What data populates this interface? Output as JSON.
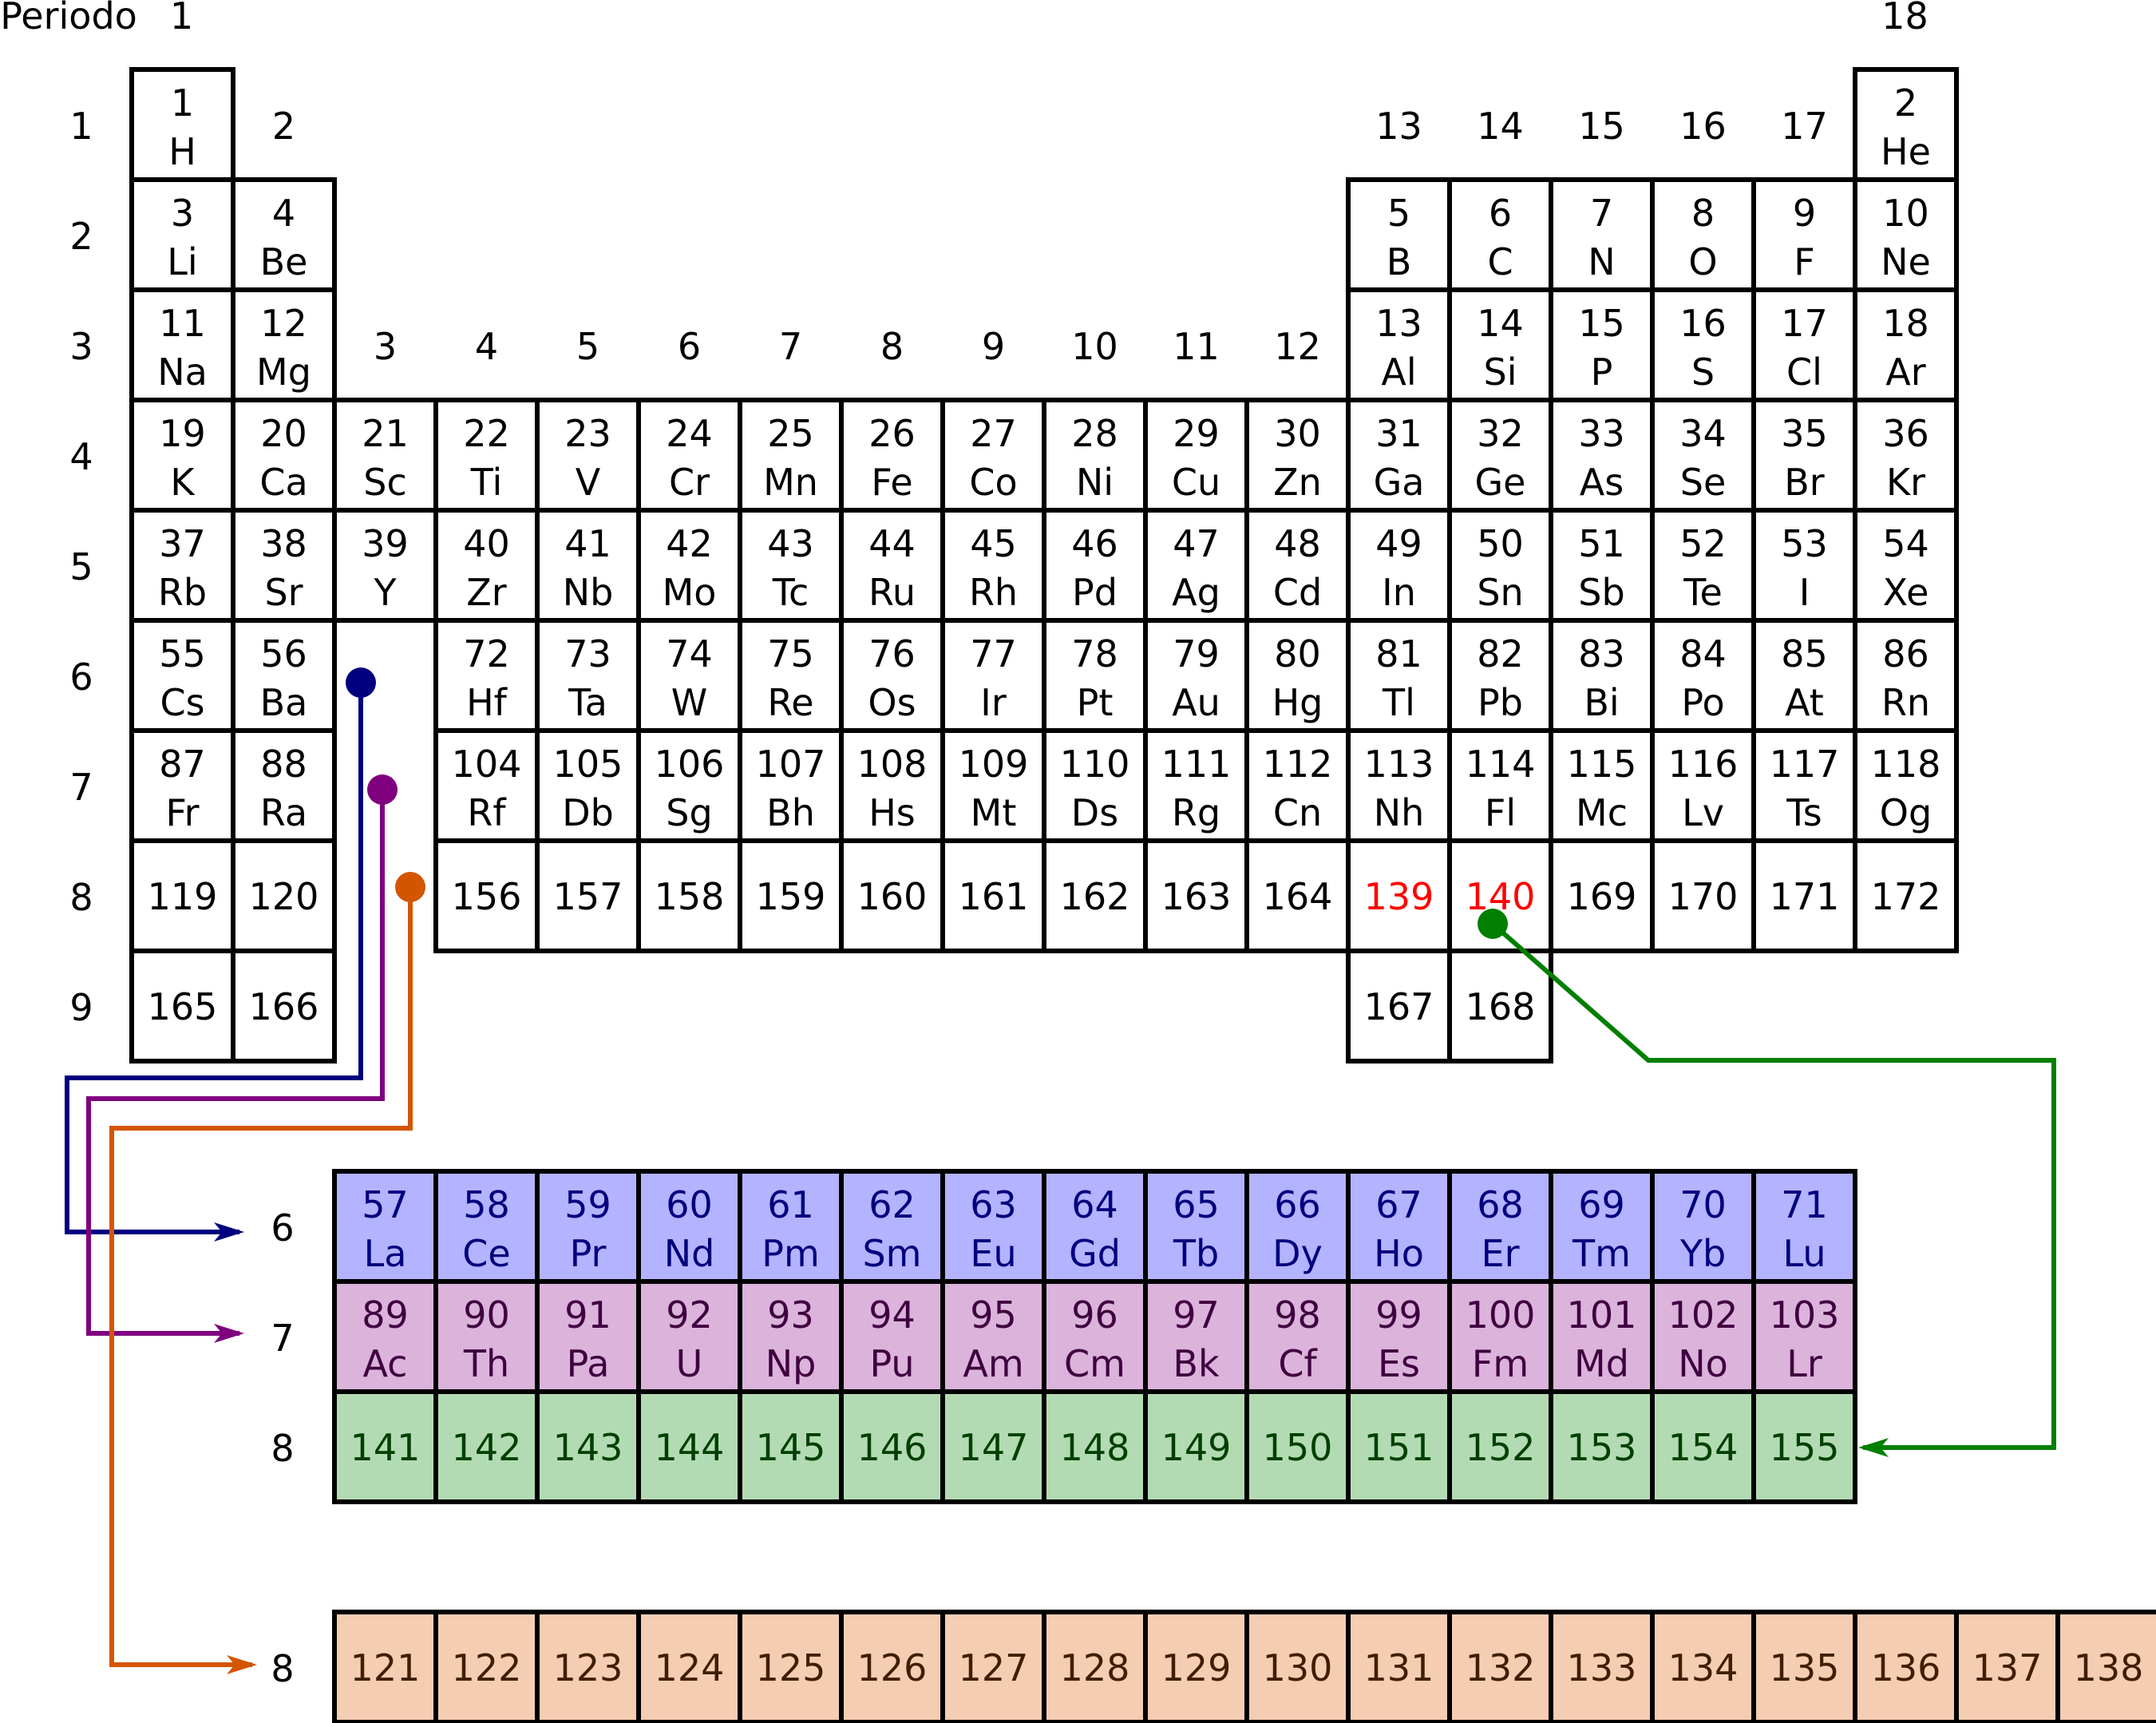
{
  "period_header": "Periodo",
  "group_top_labels": [
    {
      "col": 1,
      "text": "1"
    },
    {
      "col": 18,
      "text": "18"
    }
  ],
  "group_side_labels": [
    {
      "col": 2,
      "row": 1,
      "text": "2"
    },
    {
      "col": 13,
      "row": 1,
      "text": "13"
    },
    {
      "col": 14,
      "row": 1,
      "text": "14"
    },
    {
      "col": 15,
      "row": 1,
      "text": "15"
    },
    {
      "col": 16,
      "row": 1,
      "text": "16"
    },
    {
      "col": 17,
      "row": 1,
      "text": "17"
    },
    {
      "col": 3,
      "row": 3,
      "text": "3"
    },
    {
      "col": 4,
      "row": 3,
      "text": "4"
    },
    {
      "col": 5,
      "row": 3,
      "text": "5"
    },
    {
      "col": 6,
      "row": 3,
      "text": "6"
    },
    {
      "col": 7,
      "row": 3,
      "text": "7"
    },
    {
      "col": 8,
      "row": 3,
      "text": "8"
    },
    {
      "col": 9,
      "row": 3,
      "text": "9"
    },
    {
      "col": 10,
      "row": 3,
      "text": "10"
    },
    {
      "col": 11,
      "row": 3,
      "text": "11"
    },
    {
      "col": 12,
      "row": 3,
      "text": "12"
    }
  ],
  "period_labels": [
    "1",
    "2",
    "3",
    "4",
    "5",
    "6",
    "7",
    "8",
    "9"
  ],
  "main_cells": [
    {
      "row": 1,
      "col": 1,
      "num": "1",
      "sym": "H"
    },
    {
      "row": 1,
      "col": 18,
      "num": "2",
      "sym": "He"
    },
    {
      "row": 2,
      "col": 1,
      "num": "3",
      "sym": "Li"
    },
    {
      "row": 2,
      "col": 2,
      "num": "4",
      "sym": "Be"
    },
    {
      "row": 2,
      "col": 13,
      "num": "5",
      "sym": "B"
    },
    {
      "row": 2,
      "col": 14,
      "num": "6",
      "sym": "C"
    },
    {
      "row": 2,
      "col": 15,
      "num": "7",
      "sym": "N"
    },
    {
      "row": 2,
      "col": 16,
      "num": "8",
      "sym": "O"
    },
    {
      "row": 2,
      "col": 17,
      "num": "9",
      "sym": "F"
    },
    {
      "row": 2,
      "col": 18,
      "num": "10",
      "sym": "Ne"
    },
    {
      "row": 3,
      "col": 1,
      "num": "11",
      "sym": "Na"
    },
    {
      "row": 3,
      "col": 2,
      "num": "12",
      "sym": "Mg"
    },
    {
      "row": 3,
      "col": 13,
      "num": "13",
      "sym": "Al"
    },
    {
      "row": 3,
      "col": 14,
      "num": "14",
      "sym": "Si"
    },
    {
      "row": 3,
      "col": 15,
      "num": "15",
      "sym": "P"
    },
    {
      "row": 3,
      "col": 16,
      "num": "16",
      "sym": "S"
    },
    {
      "row": 3,
      "col": 17,
      "num": "17",
      "sym": "Cl"
    },
    {
      "row": 3,
      "col": 18,
      "num": "18",
      "sym": "Ar"
    },
    {
      "row": 4,
      "col": 1,
      "num": "19",
      "sym": "K"
    },
    {
      "row": 4,
      "col": 2,
      "num": "20",
      "sym": "Ca"
    },
    {
      "row": 4,
      "col": 3,
      "num": "21",
      "sym": "Sc"
    },
    {
      "row": 4,
      "col": 4,
      "num": "22",
      "sym": "Ti"
    },
    {
      "row": 4,
      "col": 5,
      "num": "23",
      "sym": "V"
    },
    {
      "row": 4,
      "col": 6,
      "num": "24",
      "sym": "Cr"
    },
    {
      "row": 4,
      "col": 7,
      "num": "25",
      "sym": "Mn"
    },
    {
      "row": 4,
      "col": 8,
      "num": "26",
      "sym": "Fe"
    },
    {
      "row": 4,
      "col": 9,
      "num": "27",
      "sym": "Co"
    },
    {
      "row": 4,
      "col": 10,
      "num": "28",
      "sym": "Ni"
    },
    {
      "row": 4,
      "col": 11,
      "num": "29",
      "sym": "Cu"
    },
    {
      "row": 4,
      "col": 12,
      "num": "30",
      "sym": "Zn"
    },
    {
      "row": 4,
      "col": 13,
      "num": "31",
      "sym": "Ga"
    },
    {
      "row": 4,
      "col": 14,
      "num": "32",
      "sym": "Ge"
    },
    {
      "row": 4,
      "col": 15,
      "num": "33",
      "sym": "As"
    },
    {
      "row": 4,
      "col": 16,
      "num": "34",
      "sym": "Se"
    },
    {
      "row": 4,
      "col": 17,
      "num": "35",
      "sym": "Br"
    },
    {
      "row": 4,
      "col": 18,
      "num": "36",
      "sym": "Kr"
    },
    {
      "row": 5,
      "col": 1,
      "num": "37",
      "sym": "Rb"
    },
    {
      "row": 5,
      "col": 2,
      "num": "38",
      "sym": "Sr"
    },
    {
      "row": 5,
      "col": 3,
      "num": "39",
      "sym": "Y"
    },
    {
      "row": 5,
      "col": 4,
      "num": "40",
      "sym": "Zr"
    },
    {
      "row": 5,
      "col": 5,
      "num": "41",
      "sym": "Nb"
    },
    {
      "row": 5,
      "col": 6,
      "num": "42",
      "sym": "Mo"
    },
    {
      "row": 5,
      "col": 7,
      "num": "43",
      "sym": "Tc"
    },
    {
      "row": 5,
      "col": 8,
      "num": "44",
      "sym": "Ru"
    },
    {
      "row": 5,
      "col": 9,
      "num": "45",
      "sym": "Rh"
    },
    {
      "row": 5,
      "col": 10,
      "num": "46",
      "sym": "Pd"
    },
    {
      "row": 5,
      "col": 11,
      "num": "47",
      "sym": "Ag"
    },
    {
      "row": 5,
      "col": 12,
      "num": "48",
      "sym": "Cd"
    },
    {
      "row": 5,
      "col": 13,
      "num": "49",
      "sym": "In"
    },
    {
      "row": 5,
      "col": 14,
      "num": "50",
      "sym": "Sn"
    },
    {
      "row": 5,
      "col": 15,
      "num": "51",
      "sym": "Sb"
    },
    {
      "row": 5,
      "col": 16,
      "num": "52",
      "sym": "Te"
    },
    {
      "row": 5,
      "col": 17,
      "num": "53",
      "sym": "I"
    },
    {
      "row": 5,
      "col": 18,
      "num": "54",
      "sym": "Xe"
    },
    {
      "row": 6,
      "col": 1,
      "num": "55",
      "sym": "Cs"
    },
    {
      "row": 6,
      "col": 2,
      "num": "56",
      "sym": "Ba"
    },
    {
      "row": 6,
      "col": 4,
      "num": "72",
      "sym": "Hf"
    },
    {
      "row": 6,
      "col": 5,
      "num": "73",
      "sym": "Ta"
    },
    {
      "row": 6,
      "col": 6,
      "num": "74",
      "sym": "W"
    },
    {
      "row": 6,
      "col": 7,
      "num": "75",
      "sym": "Re"
    },
    {
      "row": 6,
      "col": 8,
      "num": "76",
      "sym": "Os"
    },
    {
      "row": 6,
      "col": 9,
      "num": "77",
      "sym": "Ir"
    },
    {
      "row": 6,
      "col": 10,
      "num": "78",
      "sym": "Pt"
    },
    {
      "row": 6,
      "col": 11,
      "num": "79",
      "sym": "Au"
    },
    {
      "row": 6,
      "col": 12,
      "num": "80",
      "sym": "Hg"
    },
    {
      "row": 6,
      "col": 13,
      "num": "81",
      "sym": "Tl"
    },
    {
      "row": 6,
      "col": 14,
      "num": "82",
      "sym": "Pb"
    },
    {
      "row": 6,
      "col": 15,
      "num": "83",
      "sym": "Bi"
    },
    {
      "row": 6,
      "col": 16,
      "num": "84",
      "sym": "Po"
    },
    {
      "row": 6,
      "col": 17,
      "num": "85",
      "sym": "At"
    },
    {
      "row": 6,
      "col": 18,
      "num": "86",
      "sym": "Rn"
    },
    {
      "row": 7,
      "col": 1,
      "num": "87",
      "sym": "Fr"
    },
    {
      "row": 7,
      "col": 2,
      "num": "88",
      "sym": "Ra"
    },
    {
      "row": 7,
      "col": 4,
      "num": "104",
      "sym": "Rf"
    },
    {
      "row": 7,
      "col": 5,
      "num": "105",
      "sym": "Db"
    },
    {
      "row": 7,
      "col": 6,
      "num": "106",
      "sym": "Sg"
    },
    {
      "row": 7,
      "col": 7,
      "num": "107",
      "sym": "Bh"
    },
    {
      "row": 7,
      "col": 8,
      "num": "108",
      "sym": "Hs"
    },
    {
      "row": 7,
      "col": 9,
      "num": "109",
      "sym": "Mt"
    },
    {
      "row": 7,
      "col": 10,
      "num": "110",
      "sym": "Ds"
    },
    {
      "row": 7,
      "col": 11,
      "num": "111",
      "sym": "Rg"
    },
    {
      "row": 7,
      "col": 12,
      "num": "112",
      "sym": "Cn"
    },
    {
      "row": 7,
      "col": 13,
      "num": "113",
      "sym": "Nh"
    },
    {
      "row": 7,
      "col": 14,
      "num": "114",
      "sym": "Fl"
    },
    {
      "row": 7,
      "col": 15,
      "num": "115",
      "sym": "Mc"
    },
    {
      "row": 7,
      "col": 16,
      "num": "116",
      "sym": "Lv"
    },
    {
      "row": 7,
      "col": 17,
      "num": "117",
      "sym": "Ts"
    },
    {
      "row": 7,
      "col": 18,
      "num": "118",
      "sym": "Og"
    },
    {
      "row": 8,
      "col": 1,
      "num": "119"
    },
    {
      "row": 8,
      "col": 2,
      "num": "120"
    },
    {
      "row": 8,
      "col": 4,
      "num": "156"
    },
    {
      "row": 8,
      "col": 5,
      "num": "157"
    },
    {
      "row": 8,
      "col": 6,
      "num": "158"
    },
    {
      "row": 8,
      "col": 7,
      "num": "159"
    },
    {
      "row": 8,
      "col": 8,
      "num": "160"
    },
    {
      "row": 8,
      "col": 9,
      "num": "161"
    },
    {
      "row": 8,
      "col": 10,
      "num": "162"
    },
    {
      "row": 8,
      "col": 11,
      "num": "163"
    },
    {
      "row": 8,
      "col": 12,
      "num": "164"
    },
    {
      "row": 8,
      "col": 13,
      "num": "139",
      "highlight": true
    },
    {
      "row": 8,
      "col": 14,
      "num": "140",
      "highlight": true
    },
    {
      "row": 8,
      "col": 15,
      "num": "169"
    },
    {
      "row": 8,
      "col": 16,
      "num": "170"
    },
    {
      "row": 8,
      "col": 17,
      "num": "171"
    },
    {
      "row": 8,
      "col": 18,
      "num": "172"
    },
    {
      "row": 9,
      "col": 1,
      "num": "165"
    },
    {
      "row": 9,
      "col": 2,
      "num": "166"
    },
    {
      "row": 9,
      "col": 13,
      "num": "167"
    },
    {
      "row": 9,
      "col": 14,
      "num": "168"
    }
  ],
  "series_rows": [
    {
      "id": "lanthanides",
      "period_label": "6",
      "fill": "#b3b3ff",
      "text_color": "#00007f",
      "cells": [
        {
          "num": "57",
          "sym": "La"
        },
        {
          "num": "58",
          "sym": "Ce"
        },
        {
          "num": "59",
          "sym": "Pr"
        },
        {
          "num": "60",
          "sym": "Nd"
        },
        {
          "num": "61",
          "sym": "Pm"
        },
        {
          "num": "62",
          "sym": "Sm"
        },
        {
          "num": "63",
          "sym": "Eu"
        },
        {
          "num": "64",
          "sym": "Gd"
        },
        {
          "num": "65",
          "sym": "Tb"
        },
        {
          "num": "66",
          "sym": "Dy"
        },
        {
          "num": "67",
          "sym": "Ho"
        },
        {
          "num": "68",
          "sym": "Er"
        },
        {
          "num": "69",
          "sym": "Tm"
        },
        {
          "num": "70",
          "sym": "Yb"
        },
        {
          "num": "71",
          "sym": "Lu"
        }
      ]
    },
    {
      "id": "actinides",
      "period_label": "7",
      "fill": "#dbb3db",
      "text_color": "#3f003f",
      "cells": [
        {
          "num": "89",
          "sym": "Ac"
        },
        {
          "num": "90",
          "sym": "Th"
        },
        {
          "num": "91",
          "sym": "Pa"
        },
        {
          "num": "92",
          "sym": "U"
        },
        {
          "num": "93",
          "sym": "Np"
        },
        {
          "num": "94",
          "sym": "Pu"
        },
        {
          "num": "95",
          "sym": "Am"
        },
        {
          "num": "96",
          "sym": "Cm"
        },
        {
          "num": "97",
          "sym": "Bk"
        },
        {
          "num": "98",
          "sym": "Cf"
        },
        {
          "num": "99",
          "sym": "Es"
        },
        {
          "num": "100",
          "sym": "Fm"
        },
        {
          "num": "101",
          "sym": "Md"
        },
        {
          "num": "102",
          "sym": "No"
        },
        {
          "num": "103",
          "sym": "Lr"
        }
      ]
    },
    {
      "id": "superactinides-141",
      "period_label": "8",
      "fill": "#b3dbb3",
      "text_color": "#003f00",
      "cells": [
        {
          "num": "141"
        },
        {
          "num": "142"
        },
        {
          "num": "143"
        },
        {
          "num": "144"
        },
        {
          "num": "145"
        },
        {
          "num": "146"
        },
        {
          "num": "147"
        },
        {
          "num": "148"
        },
        {
          "num": "149"
        },
        {
          "num": "150"
        },
        {
          "num": "151"
        },
        {
          "num": "152"
        },
        {
          "num": "153"
        },
        {
          "num": "154"
        },
        {
          "num": "155"
        }
      ]
    },
    {
      "id": "superactinides-121",
      "period_label": "8",
      "fill": "#f5cdb3",
      "text_color": "#3f1f00",
      "cells": [
        {
          "num": "121"
        },
        {
          "num": "122"
        },
        {
          "num": "123"
        },
        {
          "num": "124"
        },
        {
          "num": "125"
        },
        {
          "num": "126"
        },
        {
          "num": "127"
        },
        {
          "num": "128"
        },
        {
          "num": "129"
        },
        {
          "num": "130"
        },
        {
          "num": "131"
        },
        {
          "num": "132"
        },
        {
          "num": "133"
        },
        {
          "num": "134"
        },
        {
          "num": "135"
        },
        {
          "num": "136"
        },
        {
          "num": "137"
        },
        {
          "num": "138"
        }
      ]
    }
  ],
  "colors": {
    "highlight_text": "#ff0000",
    "lanthanide_connector": "#00007f",
    "actinide_connector": "#7f007f",
    "orange_connector": "#d45500",
    "green_connector": "#007f00"
  }
}
